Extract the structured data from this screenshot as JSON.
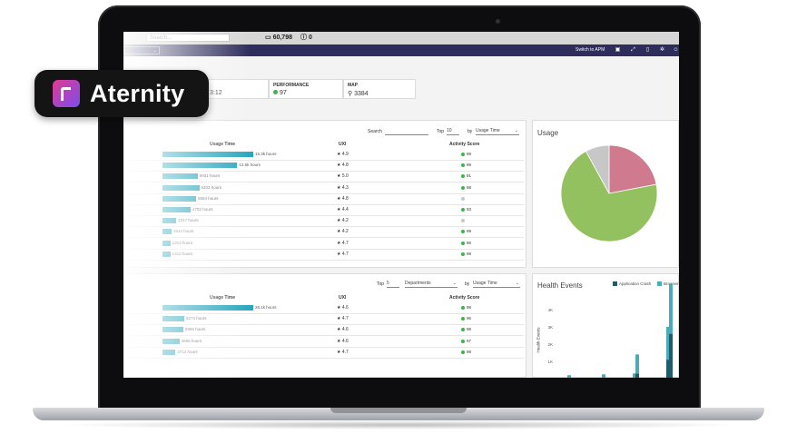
{
  "brand": {
    "name": "Aternity"
  },
  "topbar": {
    "search_placeholder": "Search...",
    "devices_count": "60,798",
    "alerts_count": "0"
  },
  "navbar": {
    "switch_label": "Switch to APM"
  },
  "kpis": [
    {
      "label": "",
      "value": "3:12"
    },
    {
      "label": "PERFORMANCE",
      "value": "97",
      "color": "#3bb54a"
    },
    {
      "label": "MAP",
      "value": "3384"
    }
  ],
  "table1": {
    "search_label": "Search",
    "top_label": "Top",
    "top_value": "10",
    "by_label": "by",
    "by_value": "Usage Time",
    "headers": {
      "usage": "Usage Time",
      "uxi": "UXI",
      "score": "Activity Score"
    },
    "rows": [
      {
        "usage": 15.3,
        "usage_label": "15.3k hours",
        "uxi": "4.9",
        "score": "89"
      },
      {
        "usage": 12.6,
        "usage_label": "12.6k hours",
        "uxi": "4.8",
        "score": "99"
      },
      {
        "usage": 5.931,
        "usage_label": "5931 hours",
        "uxi": "5.0",
        "score": "91"
      },
      {
        "usage": 6.203,
        "usage_label": "6203 hours",
        "uxi": "4.3",
        "score": "98"
      },
      {
        "usage": 5.654,
        "usage_label": "5654 hours",
        "uxi": "4.8",
        "score": ""
      },
      {
        "usage": 4.752,
        "usage_label": "4752 hours",
        "uxi": "4.4",
        "score": "93"
      },
      {
        "usage": 2.317,
        "usage_label": "2317 hours",
        "uxi": "4.2",
        "score": ""
      },
      {
        "usage": 1.514,
        "usage_label": "1514 hours",
        "uxi": "4.2",
        "score": "99"
      },
      {
        "usage": 1.313,
        "usage_label": "1313 hours",
        "uxi": "4.7",
        "score": "96"
      },
      {
        "usage": 1.312,
        "usage_label": "1312 hours",
        "uxi": "4.7",
        "score": "98"
      }
    ]
  },
  "table2": {
    "top_label": "Top",
    "top_value": "5",
    "group_value": "Departments",
    "by_label": "by",
    "by_value": "Usage Time",
    "headers": {
      "usage": "Usage Time",
      "uxi": "UXI",
      "score": "Activity Score"
    },
    "rows": [
      {
        "usage": 26.1,
        "usage_label": "26.1k hours",
        "uxi": "4.6",
        "score": "98"
      },
      {
        "usage": 6.274,
        "usage_label": "6274 hours",
        "uxi": "4.7",
        "score": "96"
      },
      {
        "usage": 5.965,
        "usage_label": "5965 hours",
        "uxi": "4.6",
        "score": "98"
      },
      {
        "usage": 4.865,
        "usage_label": "4865 hours",
        "uxi": "4.6",
        "score": "97"
      },
      {
        "usage": 3.712,
        "usage_label": "3712 hours",
        "uxi": "4.7",
        "score": "98"
      }
    ]
  },
  "usage_panel": {
    "title": "Usage"
  },
  "health_panel": {
    "title": "Health Events",
    "legend": [
      "Application Crash",
      "Browser"
    ],
    "ylabel": "Health Events",
    "yticks": [
      "4K",
      "3K",
      "2K",
      "1K"
    ]
  },
  "chart_data": [
    {
      "type": "pie",
      "title": "Usage",
      "values": [
        70,
        22,
        8
      ],
      "colors": [
        "#94c160",
        "#cf7a8e",
        "#c7c7c7"
      ]
    },
    {
      "type": "bar",
      "title": "Health Events",
      "ylabel": "Health Events",
      "ylim": [
        0,
        5000
      ],
      "yticks": [
        "1K",
        "2K",
        "3K",
        "4K"
      ],
      "series": [
        {
          "name": "Application Crash",
          "color": "#1f5d6b",
          "values": [
            0,
            0,
            0,
            300,
            1100,
            2600
          ]
        },
        {
          "name": "Browser",
          "color": "#4eaab9",
          "values": [
            200,
            250,
            300,
            1100,
            1900,
            2900
          ]
        }
      ]
    }
  ]
}
